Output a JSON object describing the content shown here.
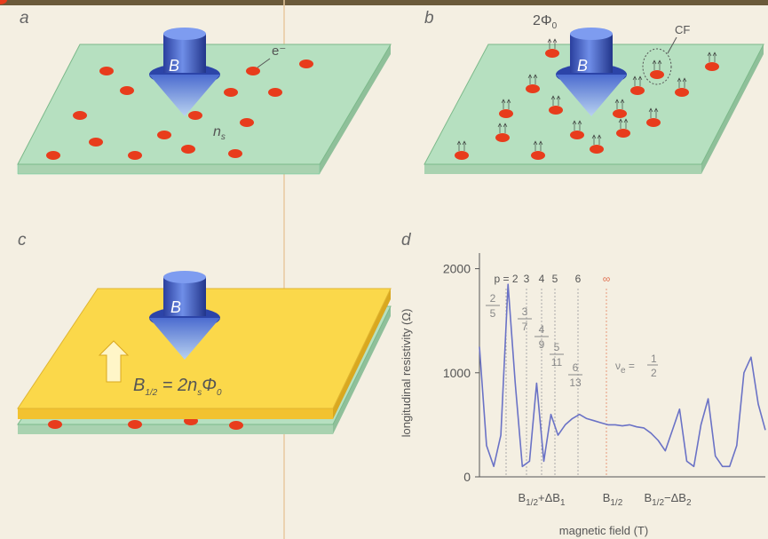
{
  "panels": {
    "a": {
      "label": "a",
      "field": "B",
      "electron": "e⁻",
      "density": [
        "n",
        "s"
      ]
    },
    "b": {
      "label": "b",
      "field": "B",
      "flux": [
        "2Φ",
        "0"
      ],
      "cf": "CF"
    },
    "c": {
      "label": "c",
      "field": "B",
      "equation": [
        "B",
        "1/2",
        " = 2n",
        "s",
        "Φ",
        "0"
      ]
    }
  },
  "chart_data": {
    "type": "line",
    "label": "d",
    "y_label": "longitudinal resistivity (Ω)",
    "x_label": "magnetic field (T)",
    "ylim": [
      0,
      2150
    ],
    "yticks": [
      0,
      1000,
      2000
    ],
    "color": "#6a72c6",
    "x_tick_labels": [
      [
        "B",
        "1/2",
        "+ΔB",
        "1"
      ],
      [
        "B",
        "1/2"
      ],
      [
        "B",
        "1/2",
        "−ΔB",
        "2"
      ]
    ],
    "p_labels": [
      "p = 2",
      "3",
      "4",
      "5",
      "6",
      "∞"
    ],
    "fractions": [
      [
        "2",
        "5"
      ],
      [
        "3",
        "7"
      ],
      [
        "4",
        "9"
      ],
      [
        "5",
        "11"
      ],
      [
        "6",
        "13"
      ]
    ],
    "nu": [
      "ν",
      "e",
      " = ",
      "1",
      "2"
    ],
    "values": [
      1250,
      300,
      100,
      400,
      1850,
      900,
      100,
      150,
      900,
      150,
      600,
      400,
      500,
      560,
      600,
      560,
      540,
      520,
      500,
      500,
      490,
      500,
      480,
      470,
      420,
      350,
      250,
      450,
      650,
      150,
      100,
      500,
      750,
      200,
      100,
      100,
      300,
      1000,
      1150,
      700,
      450
    ]
  }
}
